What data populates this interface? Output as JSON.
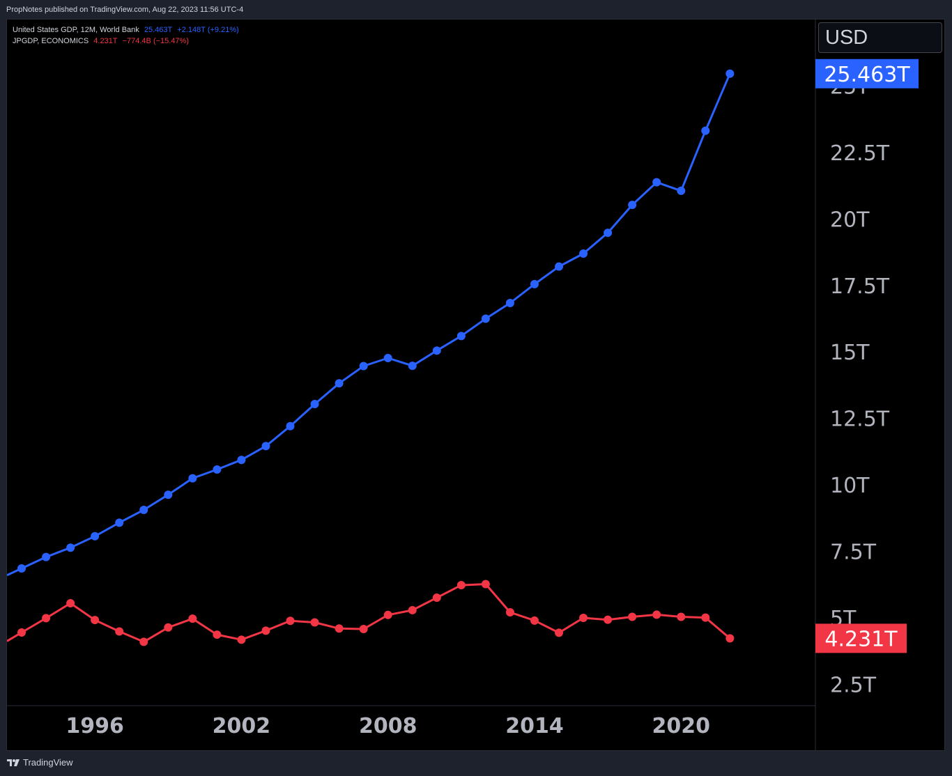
{
  "header": {
    "published_by": "PropNotes published on TradingView.com, Aug 22, 2023 11:56 UTC-4"
  },
  "legend": {
    "us": {
      "name": "United States GDP, 12M, World Bank",
      "value": "25.463T",
      "change": "+2.148T (+9.21%)"
    },
    "jp": {
      "name": "JPGDP, ECONOMICS",
      "value": "4.231T",
      "change": "−774.4B (−15.47%)"
    }
  },
  "currency": "USD",
  "footer": {
    "brand": "TradingView"
  },
  "colors": {
    "us": "#2962ff",
    "jp": "#f23645",
    "background": "#000000",
    "axis_text": "#b2b5be"
  },
  "chart_data": {
    "type": "line",
    "x": [
      1993,
      1994,
      1995,
      1996,
      1997,
      1998,
      1999,
      2000,
      2001,
      2002,
      2003,
      2004,
      2005,
      2006,
      2007,
      2008,
      2009,
      2010,
      2011,
      2012,
      2013,
      2014,
      2015,
      2016,
      2017,
      2018,
      2019,
      2020,
      2021,
      2022
    ],
    "series": [
      {
        "name": "United States GDP, 12M, World Bank",
        "color": "#2962ff",
        "last_label": "25.463T",
        "values": [
          6.86,
          7.29,
          7.64,
          8.07,
          8.58,
          9.06,
          9.63,
          10.25,
          10.58,
          10.94,
          11.46,
          12.21,
          13.04,
          13.82,
          14.47,
          14.77,
          14.48,
          15.05,
          15.6,
          16.25,
          16.84,
          17.55,
          18.21,
          18.7,
          19.48,
          20.53,
          21.38,
          21.06,
          23.32,
          25.463
        ]
      },
      {
        "name": "JPGDP, ECONOMICS",
        "color": "#f23645",
        "last_label": "4.231T",
        "values": [
          4.45,
          4.99,
          5.55,
          4.92,
          4.49,
          4.1,
          4.64,
          4.97,
          4.37,
          4.18,
          4.52,
          4.89,
          4.83,
          4.6,
          4.58,
          5.11,
          5.29,
          5.76,
          6.23,
          6.27,
          5.21,
          4.9,
          4.44,
          5.0,
          4.93,
          5.04,
          5.12,
          5.04,
          5.01,
          4.231
        ]
      }
    ],
    "x_ticks": [
      {
        "label": "1996",
        "x": 1996
      },
      {
        "label": "2002",
        "x": 2002
      },
      {
        "label": "2008",
        "x": 2008
      },
      {
        "label": "2014",
        "x": 2014
      },
      {
        "label": "2020",
        "x": 2020
      }
    ],
    "y_ticks": [
      {
        "label": "2.5T",
        "y": 2.5
      },
      {
        "label": "5T",
        "y": 5
      },
      {
        "label": "7.5T",
        "y": 7.5
      },
      {
        "label": "10T",
        "y": 10
      },
      {
        "label": "12.5T",
        "y": 12.5
      },
      {
        "label": "15T",
        "y": 15
      },
      {
        "label": "17.5T",
        "y": 17.5
      },
      {
        "label": "20T",
        "y": 20
      },
      {
        "label": "22.5T",
        "y": 22.5
      },
      {
        "label": "25T",
        "y": 25
      }
    ],
    "xlim": [
      1992.4,
      2025.5
    ],
    "ylim": [
      1.7,
      27.5
    ],
    "grid": false
  }
}
